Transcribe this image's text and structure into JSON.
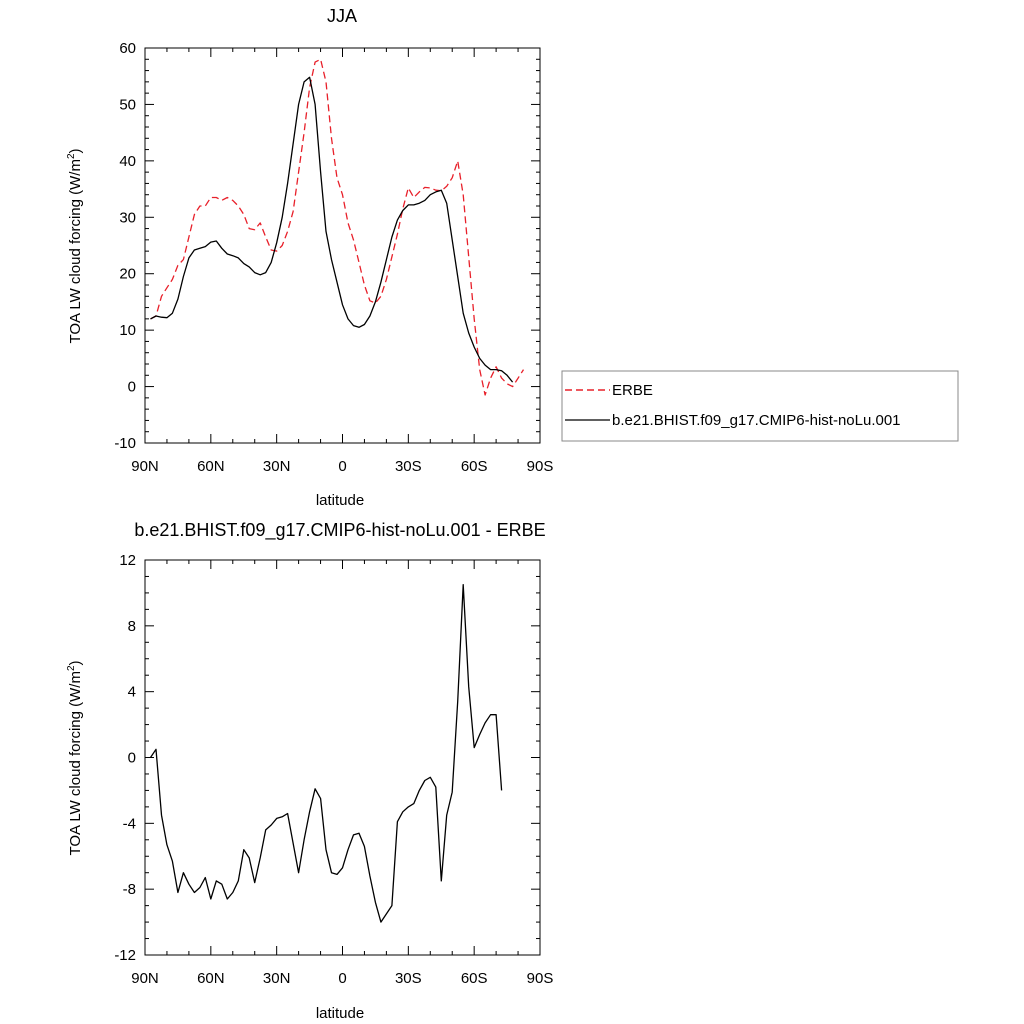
{
  "chart_data": [
    {
      "type": "line",
      "title": "JJA",
      "xlabel": "latitude",
      "ylabel": "TOA LW cloud forcing (W/m",
      "ylabel_sup": "2",
      "ylabel_close": ")",
      "xlim": [
        90,
        -90
      ],
      "ylim": [
        -10,
        60
      ],
      "xticks": [
        {
          "value": 90,
          "label": "90N"
        },
        {
          "value": 60,
          "label": "60N"
        },
        {
          "value": 30,
          "label": "30N"
        },
        {
          "value": 0,
          "label": "0"
        },
        {
          "value": -30,
          "label": "30S"
        },
        {
          "value": -60,
          "label": "60S"
        },
        {
          "value": -90,
          "label": "90S"
        }
      ],
      "yticks": [
        -10,
        0,
        10,
        20,
        30,
        40,
        50,
        60
      ],
      "legend_position": "right",
      "series": [
        {
          "name": "ERBE",
          "color": "#e8202a",
          "dash": "dashed",
          "points": [
            [
              87.5,
              12
            ],
            [
              85,
              12.5
            ],
            [
              82.5,
              16
            ],
            [
              80,
              17.5
            ],
            [
              77.5,
              19
            ],
            [
              75,
              21.5
            ],
            [
              72.5,
              22.5
            ],
            [
              70,
              26.5
            ],
            [
              67.5,
              30.5
            ],
            [
              65,
              32
            ],
            [
              62.5,
              32
            ],
            [
              60,
              33.5
            ],
            [
              57.5,
              33.5
            ],
            [
              55,
              33
            ],
            [
              52.5,
              33.5
            ],
            [
              50,
              33
            ],
            [
              47.5,
              32
            ],
            [
              45,
              30.5
            ],
            [
              42.5,
              28
            ],
            [
              40,
              27.8
            ],
            [
              37.5,
              29
            ],
            [
              35,
              26.5
            ],
            [
              32.5,
              24.2
            ],
            [
              30,
              24
            ],
            [
              27.5,
              25
            ],
            [
              25,
              27.5
            ],
            [
              22.5,
              31
            ],
            [
              20,
              38
            ],
            [
              17.5,
              45
            ],
            [
              15,
              53
            ],
            [
              12.5,
              57.5
            ],
            [
              10,
              58
            ],
            [
              7.5,
              54
            ],
            [
              5,
              44
            ],
            [
              2.5,
              37
            ],
            [
              0,
              34
            ],
            [
              -2.5,
              29
            ],
            [
              -5,
              26
            ],
            [
              -7.5,
              22
            ],
            [
              -10,
              18
            ],
            [
              -12.5,
              15.2
            ],
            [
              -15,
              14.8
            ],
            [
              -17.5,
              16
            ],
            [
              -20,
              19
            ],
            [
              -22.5,
              23
            ],
            [
              -25,
              27
            ],
            [
              -27.5,
              31.5
            ],
            [
              -30,
              35.2
            ],
            [
              -32.5,
              33.5
            ],
            [
              -35,
              34.5
            ],
            [
              -37.5,
              35.3
            ],
            [
              -40,
              35.2
            ],
            [
              -42.5,
              34.8
            ],
            [
              -45,
              34.7
            ],
            [
              -47.5,
              35.5
            ],
            [
              -50,
              37
            ],
            [
              -52.5,
              40
            ],
            [
              -55,
              34
            ],
            [
              -57.5,
              23
            ],
            [
              -60,
              12
            ],
            [
              -62.5,
              3
            ],
            [
              -65,
              -1.5
            ],
            [
              -67.5,
              1.5
            ],
            [
              -70,
              3.5
            ],
            [
              -72.5,
              1.5
            ],
            [
              -75,
              0.5
            ],
            [
              -77.5,
              0
            ],
            [
              -80,
              1.5
            ],
            [
              -82.5,
              3
            ]
          ]
        },
        {
          "name": "b.e21.BHIST.f09_g17.CMIP6-hist-noLu.001",
          "color": "#000000",
          "dash": "solid",
          "points": [
            [
              87.5,
              12
            ],
            [
              85,
              12.5
            ],
            [
              82.5,
              12.3
            ],
            [
              80,
              12.2
            ],
            [
              77.5,
              13
            ],
            [
              75,
              15.5
            ],
            [
              72.5,
              19.5
            ],
            [
              70,
              22.8
            ],
            [
              67.5,
              24.2
            ],
            [
              65,
              24.5
            ],
            [
              62.5,
              24.8
            ],
            [
              60,
              25.6
            ],
            [
              57.5,
              25.8
            ],
            [
              55,
              24.5
            ],
            [
              52.5,
              23.5
            ],
            [
              50,
              23.2
            ],
            [
              47.5,
              22.8
            ],
            [
              45,
              21.8
            ],
            [
              42.5,
              21.2
            ],
            [
              40,
              20.2
            ],
            [
              37.5,
              19.8
            ],
            [
              35,
              20.2
            ],
            [
              32.5,
              22
            ],
            [
              30,
              25.5
            ],
            [
              27.5,
              30
            ],
            [
              25,
              36
            ],
            [
              22.5,
              43
            ],
            [
              20,
              50
            ],
            [
              17.5,
              54
            ],
            [
              15,
              54.8
            ],
            [
              12.5,
              50
            ],
            [
              10,
              38
            ],
            [
              7.5,
              27.5
            ],
            [
              5,
              22.5
            ],
            [
              2.5,
              18.5
            ],
            [
              0,
              14.5
            ],
            [
              -2.5,
              12
            ],
            [
              -5,
              10.8
            ],
            [
              -7.5,
              10.5
            ],
            [
              -10,
              11
            ],
            [
              -12.5,
              12.5
            ],
            [
              -15,
              15
            ],
            [
              -17.5,
              18.5
            ],
            [
              -20,
              22.5
            ],
            [
              -22.5,
              26.5
            ],
            [
              -25,
              29.5
            ],
            [
              -27.5,
              31.2
            ],
            [
              -30,
              32.2
            ],
            [
              -32.5,
              32.2
            ],
            [
              -35,
              32.5
            ],
            [
              -37.5,
              33
            ],
            [
              -40,
              34
            ],
            [
              -42.5,
              34.5
            ],
            [
              -45,
              34.8
            ],
            [
              -47.5,
              32.5
            ],
            [
              -50,
              26
            ],
            [
              -52.5,
              19.5
            ],
            [
              -55,
              13
            ],
            [
              -57.5,
              9.5
            ],
            [
              -60,
              7
            ],
            [
              -62.5,
              5
            ],
            [
              -65,
              3.8
            ],
            [
              -67.5,
              3
            ],
            [
              -70,
              3
            ],
            [
              -72.5,
              2.8
            ],
            [
              -75,
              2
            ],
            [
              -77.5,
              0.8
            ]
          ]
        }
      ]
    },
    {
      "type": "line",
      "title": "b.e21.BHIST.f09_g17.CMIP6-hist-noLu.001 - ERBE",
      "xlabel": "latitude",
      "ylabel": "TOA LW cloud forcing (W/m",
      "ylabel_sup": "2",
      "ylabel_close": ")",
      "xlim": [
        90,
        -90
      ],
      "ylim": [
        -12,
        12
      ],
      "xticks": [
        {
          "value": 90,
          "label": "90N"
        },
        {
          "value": 60,
          "label": "60N"
        },
        {
          "value": 30,
          "label": "30N"
        },
        {
          "value": 0,
          "label": "0"
        },
        {
          "value": -30,
          "label": "30S"
        },
        {
          "value": -60,
          "label": "60S"
        },
        {
          "value": -90,
          "label": "90S"
        }
      ],
      "yticks": [
        -12,
        -8,
        -4,
        0,
        4,
        8,
        12
      ],
      "series": [
        {
          "color": "#000000",
          "dash": "solid",
          "points": [
            [
              87.5,
              0
            ],
            [
              85,
              0.5
            ],
            [
              82.5,
              -3.5
            ],
            [
              80,
              -5.3
            ],
            [
              77.5,
              -6.3
            ],
            [
              75,
              -8.2
            ],
            [
              72.5,
              -7
            ],
            [
              70,
              -7.7
            ],
            [
              67.5,
              -8.2
            ],
            [
              65,
              -7.9
            ],
            [
              62.5,
              -7.3
            ],
            [
              60,
              -8.6
            ],
            [
              57.5,
              -7.5
            ],
            [
              55,
              -7.7
            ],
            [
              52.5,
              -8.6
            ],
            [
              50,
              -8.2
            ],
            [
              47.5,
              -7.5
            ],
            [
              45,
              -5.6
            ],
            [
              42.5,
              -6.1
            ],
            [
              40,
              -7.6
            ],
            [
              37.5,
              -6.1
            ],
            [
              35,
              -4.4
            ],
            [
              32.5,
              -4.1
            ],
            [
              30,
              -3.7
            ],
            [
              27.5,
              -3.6
            ],
            [
              25,
              -3.4
            ],
            [
              22.5,
              -5.2
            ],
            [
              20,
              -7
            ],
            [
              17.5,
              -5
            ],
            [
              15,
              -3.3
            ],
            [
              12.5,
              -1.9
            ],
            [
              10,
              -2.5
            ],
            [
              7.5,
              -5.6
            ],
            [
              5,
              -7
            ],
            [
              2.5,
              -7.1
            ],
            [
              0,
              -6.7
            ],
            [
              -2.5,
              -5.6
            ],
            [
              -5,
              -4.7
            ],
            [
              -7.5,
              -4.6
            ],
            [
              -10,
              -5.4
            ],
            [
              -12.5,
              -7.2
            ],
            [
              -15,
              -8.8
            ],
            [
              -17.5,
              -10
            ],
            [
              -20,
              -9.5
            ],
            [
              -22.5,
              -9
            ],
            [
              -25,
              -3.9
            ],
            [
              -27.5,
              -3.3
            ],
            [
              -30,
              -3
            ],
            [
              -32.5,
              -2.8
            ],
            [
              -35,
              -2
            ],
            [
              -37.5,
              -1.4
            ],
            [
              -40,
              -1.2
            ],
            [
              -42.5,
              -1.8
            ],
            [
              -45,
              -7.5
            ],
            [
              -47.5,
              -3.5
            ],
            [
              -50,
              -2.1
            ],
            [
              -52.5,
              3.4
            ],
            [
              -55,
              10.5
            ],
            [
              -57.5,
              4.3
            ],
            [
              -60,
              0.6
            ],
            [
              -62.5,
              1.4
            ],
            [
              -65,
              2.1
            ],
            [
              -67.5,
              2.6
            ],
            [
              -70,
              2.6
            ],
            [
              -72.5,
              -2
            ]
          ]
        }
      ]
    }
  ]
}
